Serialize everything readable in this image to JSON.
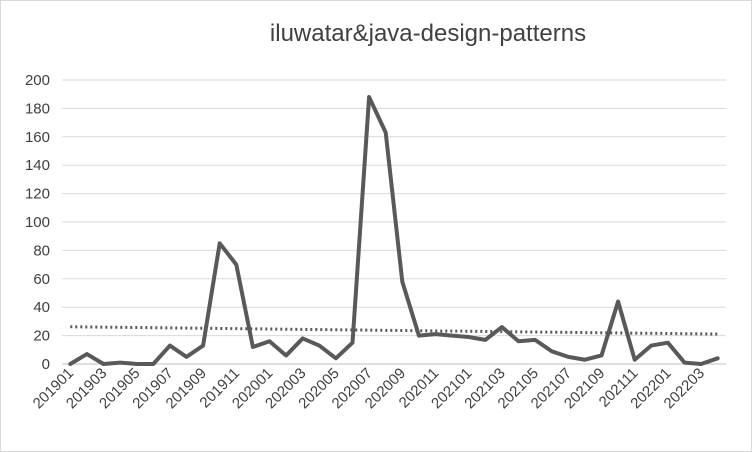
{
  "chart_data": {
    "type": "line",
    "title": "iluwatar&java-design-patterns",
    "xlabel": "",
    "ylabel": "",
    "ylim": [
      0,
      200
    ],
    "yticks": [
      0,
      20,
      40,
      60,
      80,
      100,
      120,
      140,
      160,
      180,
      200
    ],
    "grid": true,
    "legend": "none",
    "x": [
      "201901",
      "201902",
      "201903",
      "201904",
      "201905",
      "201906",
      "201907",
      "201908",
      "201909",
      "201910",
      "201911",
      "201912",
      "202001",
      "202002",
      "202003",
      "202004",
      "202005",
      "202006",
      "202007",
      "202008",
      "202009",
      "202010",
      "202011",
      "202012",
      "202101",
      "202102",
      "202103",
      "202104",
      "202105",
      "202106",
      "202107",
      "202108",
      "202109",
      "202110",
      "202111",
      "202112",
      "202201",
      "202202",
      "202203",
      "202204"
    ],
    "x_tick_labels": [
      "201901",
      "201903",
      "201905",
      "201907",
      "201909",
      "201911",
      "202001",
      "202003",
      "202005",
      "202007",
      "202009",
      "202011",
      "202101",
      "202103",
      "202105",
      "202107",
      "202109",
      "202111",
      "202201",
      "202203"
    ],
    "series": [
      {
        "values": [
          0,
          7,
          0,
          1,
          0,
          0,
          13,
          5,
          13,
          85,
          70,
          12,
          16,
          6,
          18,
          13,
          4,
          15,
          188,
          163,
          58,
          20,
          21,
          20,
          19,
          17,
          26,
          16,
          17,
          9,
          5,
          3,
          6,
          44,
          3,
          13,
          15,
          1,
          0,
          4
        ],
        "color": "#595959"
      }
    ],
    "trendline": {
      "type": "linear",
      "color": "#595959",
      "style": "dotted"
    }
  }
}
